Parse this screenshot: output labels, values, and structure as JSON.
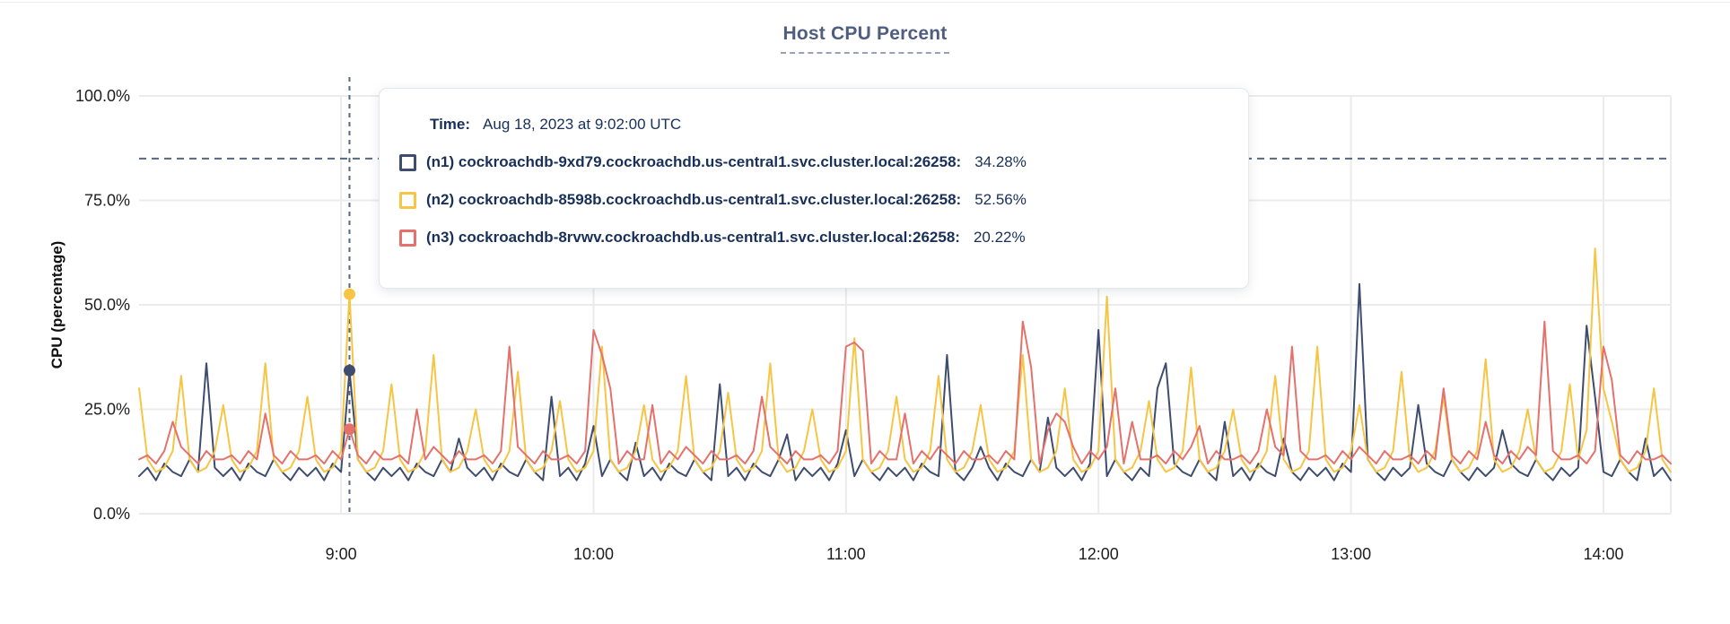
{
  "title": "Host CPU Percent",
  "y_axis": {
    "title": "CPU (percentage)"
  },
  "tooltip": {
    "time_label": "Time:",
    "time_value": "Aug 18, 2023 at 9:02:00 UTC",
    "rows": [
      {
        "label": "(n1) cockroachdb-9xd79.cockroachdb.us-central1.svc.cluster.local:26258:",
        "value": "34.28%"
      },
      {
        "label": "(n2) cockroachdb-8598b.cockroachdb.us-central1.svc.cluster.local:26258:",
        "value": "52.56%"
      },
      {
        "label": "(n3) cockroachdb-8rvwv.cockroachdb.us-central1.svc.cluster.local:26258:",
        "value": "20.22%"
      }
    ]
  },
  "colors": {
    "grid": "#ebebeb",
    "tick_text": "#1d1d1d",
    "dashed_guides": "#55687d",
    "title_text": "#4f5d80"
  },
  "chart_data": {
    "type": "line",
    "title": "Host CPU Percent",
    "xlabel": "",
    "ylabel": "CPU (percentage)",
    "ylim": [
      0,
      100
    ],
    "grid": true,
    "y_ticks": [
      {
        "label": "100.0%",
        "value": 100
      },
      {
        "label": "75.0%",
        "value": 75
      },
      {
        "label": "50.0%",
        "value": 50
      },
      {
        "label": "25.0%",
        "value": 25
      },
      {
        "label": "0.0%",
        "value": 0
      }
    ],
    "x_start_min": 0,
    "x_end_min": 364,
    "x_step_minutes": 2,
    "x_start_time": "8:12",
    "x_ticks": [
      {
        "label": "9:00",
        "minute": 48
      },
      {
        "label": "10:00",
        "minute": 108
      },
      {
        "label": "11:00",
        "minute": 168
      },
      {
        "label": "12:00",
        "minute": 228
      },
      {
        "label": "13:00",
        "minute": 288
      },
      {
        "label": "14:00",
        "minute": 348
      }
    ],
    "threshold_percent": 85,
    "hover": {
      "index": 25,
      "time": "Aug 18, 2023 at 9:02:00 UTC",
      "values": [
        34.28,
        52.56,
        20.22
      ]
    },
    "series": [
      {
        "name": "(n1) cockroachdb-9xd79.cockroachdb.us-central1.svc.cluster.local:26258",
        "color": "#3e4c6d",
        "values": [
          9,
          11,
          8,
          12,
          10,
          9,
          13,
          10,
          36,
          11,
          9,
          11,
          8,
          12,
          10,
          9,
          13,
          10,
          8,
          11,
          9,
          11,
          8,
          12,
          10,
          34.28,
          13,
          10,
          8,
          11,
          9,
          11,
          8,
          12,
          10,
          9,
          13,
          10,
          18,
          11,
          9,
          11,
          8,
          12,
          10,
          9,
          13,
          10,
          8,
          28,
          9,
          11,
          8,
          12,
          21,
          9,
          13,
          10,
          8,
          17,
          9,
          11,
          8,
          12,
          10,
          9,
          13,
          10,
          8,
          31,
          9,
          11,
          8,
          12,
          10,
          9,
          13,
          19,
          8,
          11,
          9,
          11,
          8,
          12,
          20,
          9,
          13,
          10,
          8,
          11,
          9,
          11,
          8,
          12,
          10,
          9,
          38,
          10,
          8,
          11,
          16,
          11,
          8,
          12,
          10,
          9,
          13,
          10,
          23,
          11,
          9,
          11,
          8,
          12,
          44,
          9,
          13,
          10,
          8,
          11,
          9,
          30,
          36,
          12,
          10,
          9,
          13,
          10,
          8,
          22,
          9,
          11,
          8,
          12,
          10,
          9,
          18,
          10,
          8,
          11,
          9,
          11,
          8,
          12,
          10,
          55,
          13,
          10,
          8,
          11,
          9,
          11,
          26,
          12,
          10,
          9,
          13,
          10,
          8,
          11,
          9,
          11,
          20,
          12,
          10,
          9,
          13,
          10,
          8,
          11,
          9,
          11,
          45,
          28,
          10,
          9,
          13,
          10,
          8,
          18,
          9,
          11,
          8
        ]
      },
      {
        "name": "(n2) cockroachdb-8598b.cockroachdb.us-central1.svc.cluster.local:26258",
        "color": "#f6c544",
        "values": [
          30,
          13,
          10,
          11,
          15,
          33,
          13,
          10,
          11,
          15,
          26,
          13,
          10,
          11,
          15,
          36,
          13,
          10,
          11,
          15,
          28,
          13,
          10,
          11,
          15,
          52.56,
          13,
          10,
          11,
          15,
          31,
          13,
          10,
          11,
          15,
          38,
          13,
          10,
          11,
          15,
          25,
          13,
          10,
          11,
          15,
          34,
          13,
          10,
          11,
          15,
          27,
          13,
          10,
          11,
          15,
          40,
          13,
          10,
          11,
          15,
          26,
          13,
          10,
          11,
          15,
          33,
          13,
          10,
          11,
          15,
          29,
          13,
          10,
          11,
          15,
          36,
          13,
          10,
          11,
          15,
          25,
          13,
          10,
          11,
          15,
          42,
          13,
          10,
          11,
          15,
          28,
          13,
          10,
          11,
          15,
          33,
          13,
          10,
          11,
          15,
          26,
          13,
          10,
          11,
          15,
          38,
          13,
          10,
          11,
          15,
          30,
          13,
          10,
          11,
          15,
          52,
          13,
          10,
          11,
          15,
          27,
          13,
          10,
          11,
          15,
          35,
          13,
          10,
          11,
          15,
          25,
          13,
          10,
          11,
          15,
          33,
          13,
          10,
          11,
          15,
          40,
          13,
          10,
          11,
          15,
          26,
          13,
          10,
          11,
          15,
          34,
          13,
          10,
          11,
          15,
          28,
          13,
          10,
          11,
          15,
          37,
          13,
          10,
          11,
          15,
          25,
          13,
          10,
          11,
          15,
          31,
          13,
          20,
          63.5,
          30,
          22,
          13,
          10,
          11,
          15,
          30,
          13,
          10
        ]
      },
      {
        "name": "(n3) cockroachdb-8rvwv.cockroachdb.us-central1.svc.cluster.local:26258",
        "color": "#e4716c",
        "values": [
          13,
          14,
          12,
          15,
          22,
          16,
          14,
          12,
          15,
          13,
          13,
          14,
          12,
          15,
          13,
          24,
          14,
          12,
          15,
          13,
          13,
          14,
          12,
          15,
          13,
          20.22,
          14,
          12,
          15,
          13,
          13,
          14,
          12,
          25,
          13,
          16,
          14,
          12,
          15,
          13,
          13,
          14,
          12,
          15,
          40,
          16,
          14,
          12,
          15,
          13,
          13,
          14,
          12,
          15,
          44,
          38,
          30,
          12,
          15,
          13,
          13,
          26,
          12,
          15,
          13,
          16,
          14,
          12,
          15,
          13,
          13,
          14,
          12,
          15,
          28,
          16,
          14,
          12,
          15,
          13,
          13,
          14,
          12,
          15,
          40,
          41,
          39,
          12,
          15,
          13,
          13,
          24,
          12,
          15,
          13,
          16,
          14,
          12,
          15,
          13,
          13,
          14,
          12,
          15,
          13,
          46,
          35,
          12,
          20,
          24,
          22,
          16,
          12,
          15,
          13,
          16,
          30,
          12,
          22,
          13,
          13,
          14,
          12,
          15,
          13,
          16,
          21,
          12,
          15,
          13,
          13,
          14,
          12,
          15,
          25,
          16,
          14,
          40,
          15,
          13,
          13,
          14,
          12,
          15,
          13,
          16,
          14,
          12,
          15,
          13,
          13,
          14,
          12,
          15,
          13,
          30,
          14,
          12,
          15,
          13,
          22,
          14,
          12,
          15,
          13,
          16,
          14,
          46,
          15,
          13,
          13,
          14,
          12,
          15,
          40,
          32,
          14,
          12,
          15,
          13,
          13,
          14,
          12
        ]
      }
    ]
  }
}
